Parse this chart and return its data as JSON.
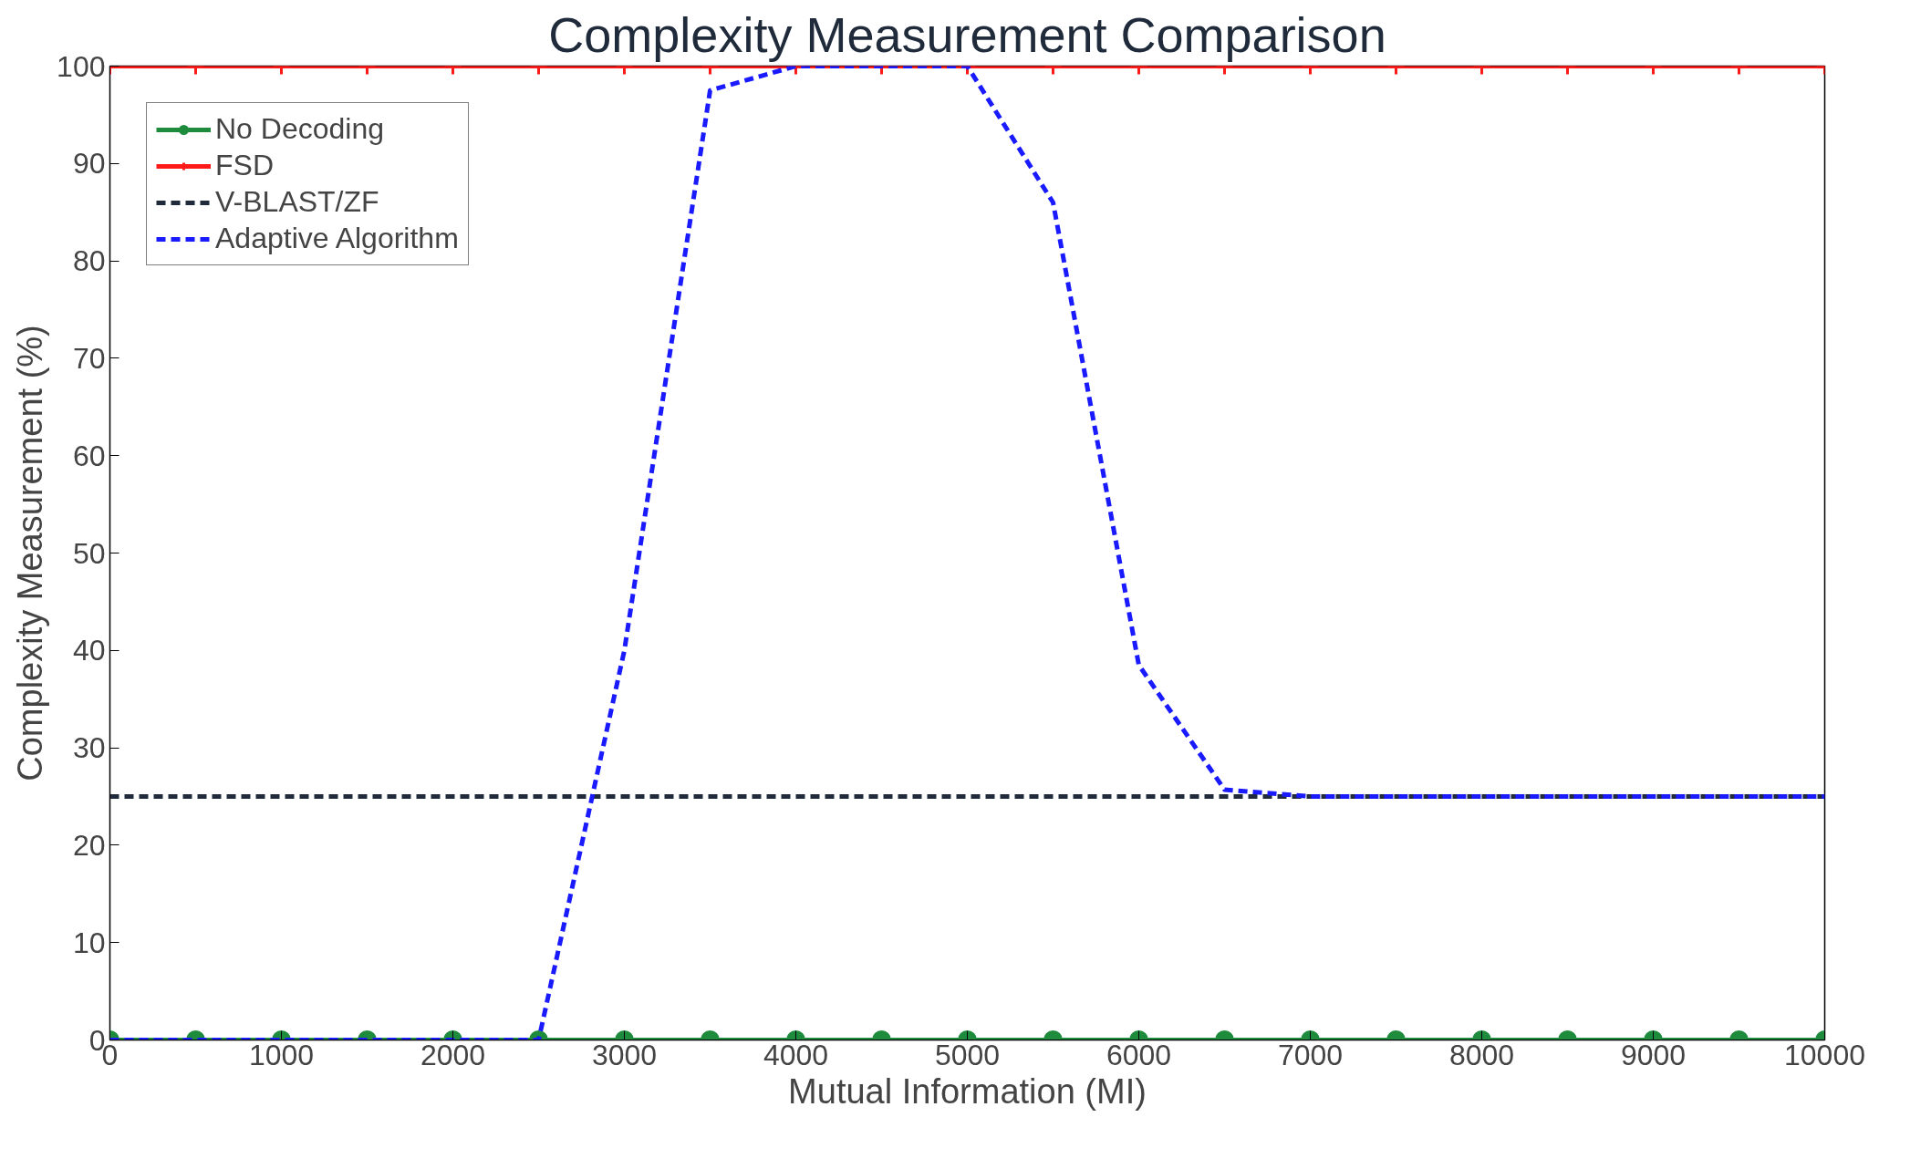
{
  "chart_data": {
    "type": "line",
    "title": "Complexity Measurement Comparison",
    "xlabel": "Mutual Information (MI)",
    "ylabel": "Complexity Measurement (%)",
    "x": [
      0,
      500,
      1000,
      1500,
      2000,
      2500,
      3000,
      3500,
      4000,
      4500,
      5000,
      5500,
      6000,
      6500,
      7000,
      7500,
      8000,
      8500,
      9000,
      9500,
      10000
    ],
    "series": [
      {
        "name": "No Decoding",
        "color": "#1e8c3c",
        "marker": "circle",
        "line_style": "solid",
        "values": [
          0,
          0,
          0,
          0,
          0,
          0,
          0,
          0,
          0,
          0,
          0,
          0,
          0,
          0,
          0,
          0,
          0,
          0,
          0,
          0,
          0
        ]
      },
      {
        "name": "FSD",
        "color": "#ff1a1a",
        "marker": "cross",
        "line_style": "solid",
        "values": [
          100,
          100,
          100,
          100,
          100,
          100,
          100,
          100,
          100,
          100,
          100,
          100,
          100,
          100,
          100,
          100,
          100,
          100,
          100,
          100,
          100
        ]
      },
      {
        "name": "V-BLAST/ZF",
        "color": "#1f2a3a",
        "marker": "none",
        "line_style": "dashed",
        "values": [
          25,
          25,
          25,
          25,
          25,
          25,
          25,
          25,
          25,
          25,
          25,
          25,
          25,
          25,
          25,
          25,
          25,
          25,
          25,
          25,
          25
        ]
      },
      {
        "name": "Adaptive Algorithm",
        "color": "#1a1aff",
        "marker": "none",
        "line_style": "dashed",
        "values": [
          0,
          0,
          0,
          0,
          0,
          0,
          40,
          97.5,
          100,
          100,
          100,
          86,
          38.5,
          25.7,
          25,
          25,
          25,
          25,
          25,
          25,
          25
        ]
      }
    ],
    "xlim": [
      0,
      10000
    ],
    "xticks": [
      0,
      1000,
      2000,
      3000,
      4000,
      5000,
      6000,
      7000,
      8000,
      9000,
      10000
    ],
    "ylim": [
      0,
      100
    ],
    "yticks": [
      0,
      10,
      20,
      30,
      40,
      50,
      60,
      70,
      80,
      90,
      100
    ],
    "grid": false,
    "legend": "top left"
  }
}
